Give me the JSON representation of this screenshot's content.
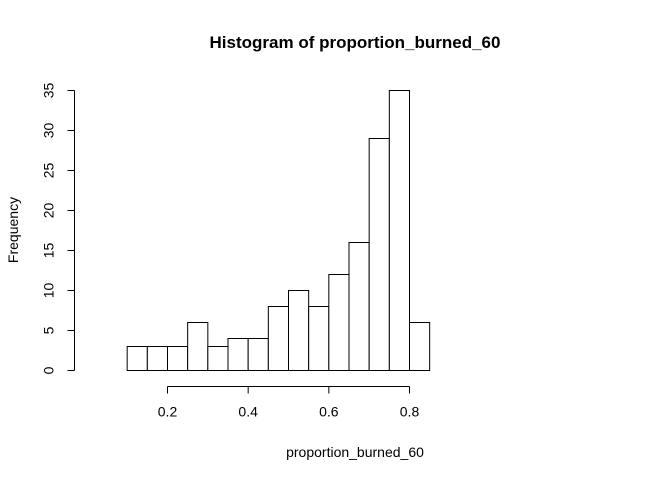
{
  "chart_data": {
    "type": "bar",
    "title": "Histogram of proportion_burned_60",
    "xlabel": "proportion_burned_60",
    "ylabel": "Frequency",
    "bins": [
      {
        "x0": 0.1,
        "x1": 0.15,
        "count": 3
      },
      {
        "x0": 0.15,
        "x1": 0.2,
        "count": 3
      },
      {
        "x0": 0.2,
        "x1": 0.25,
        "count": 3
      },
      {
        "x0": 0.25,
        "x1": 0.3,
        "count": 6
      },
      {
        "x0": 0.3,
        "x1": 0.35,
        "count": 3
      },
      {
        "x0": 0.35,
        "x1": 0.4,
        "count": 4
      },
      {
        "x0": 0.4,
        "x1": 0.45,
        "count": 4
      },
      {
        "x0": 0.45,
        "x1": 0.5,
        "count": 8
      },
      {
        "x0": 0.5,
        "x1": 0.55,
        "count": 10
      },
      {
        "x0": 0.55,
        "x1": 0.6,
        "count": 8
      },
      {
        "x0": 0.6,
        "x1": 0.65,
        "count": 12
      },
      {
        "x0": 0.65,
        "x1": 0.7,
        "count": 16
      },
      {
        "x0": 0.7,
        "x1": 0.75,
        "count": 29
      },
      {
        "x0": 0.75,
        "x1": 0.8,
        "count": 35
      },
      {
        "x0": 0.8,
        "x1": 0.85,
        "count": 6
      }
    ],
    "xticks": [
      0.2,
      0.4,
      0.6,
      0.8
    ],
    "yticks": [
      0,
      5,
      10,
      15,
      20,
      25,
      30,
      35
    ],
    "xlim": [
      0.1,
      0.85
    ],
    "ylim": [
      0,
      35
    ],
    "grid": false,
    "bar_fill": "#ffffff",
    "bar_stroke": "#000000"
  }
}
